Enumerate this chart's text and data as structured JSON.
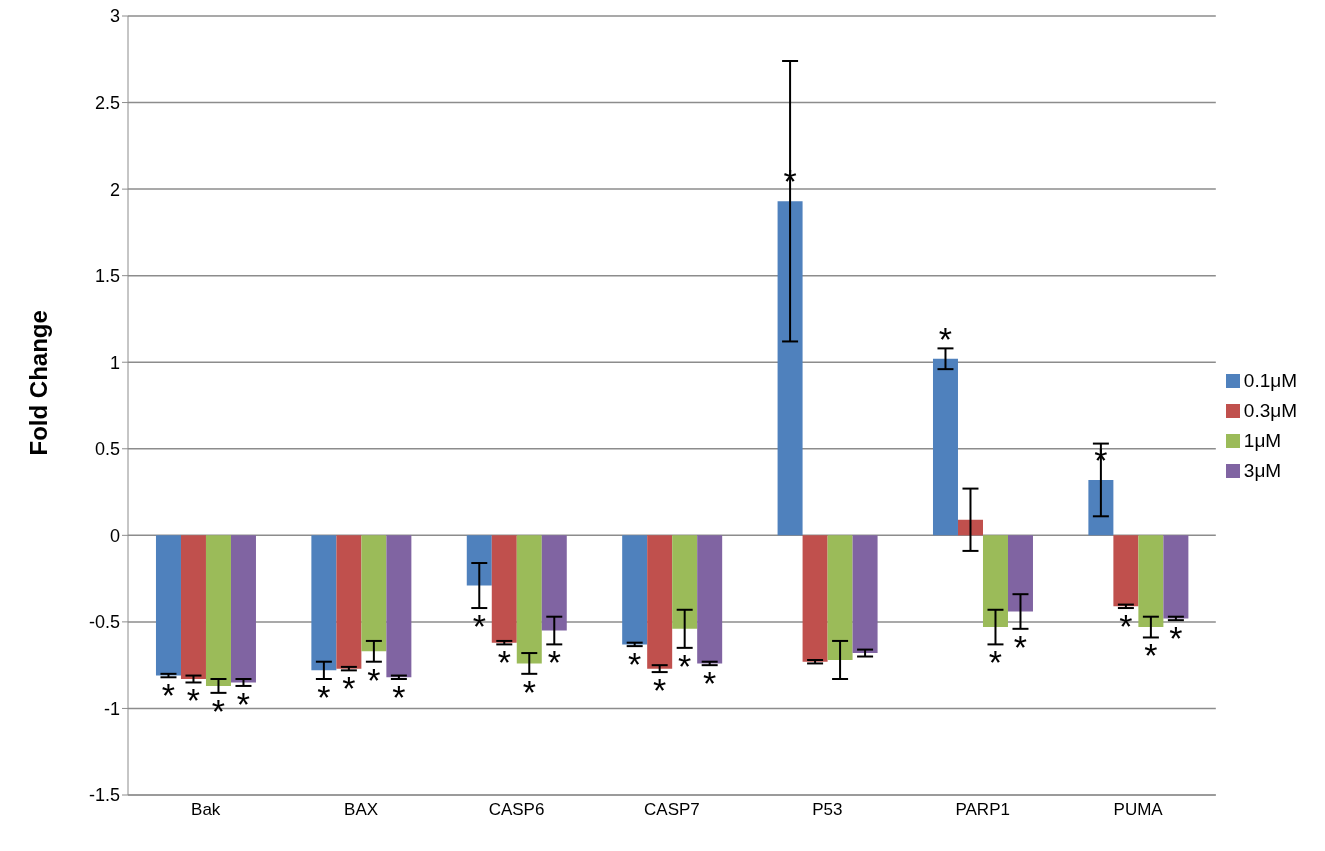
{
  "chart_data": {
    "type": "bar",
    "ylabel": "Fold Change",
    "categories": [
      "Bak",
      "BAX",
      "CASP6",
      "CASP7",
      "P53",
      "PARP1",
      "PUMA"
    ],
    "series": [
      {
        "name": "0.1μM",
        "color": "#4f81bd",
        "values": [
          -0.81,
          -0.78,
          -0.29,
          -0.63,
          1.93,
          1.02,
          0.32
        ],
        "errors": [
          0.01,
          0.05,
          0.13,
          0.01,
          0.81,
          0.06,
          0.21
        ],
        "value_labels": [
          "*",
          "*",
          "*",
          "*",
          "*",
          "*",
          "*"
        ]
      },
      {
        "name": "0.3μM",
        "color": "#c0504d",
        "values": [
          -0.83,
          -0.77,
          -0.62,
          -0.77,
          -0.73,
          0.09,
          -0.41
        ],
        "errors": [
          0.02,
          0.01,
          0.01,
          0.02,
          0.01,
          0.18,
          0.01
        ],
        "value_labels": [
          "*",
          "*",
          "*",
          "*",
          null,
          null,
          "*"
        ]
      },
      {
        "name": "1μM",
        "color": "#9bbb59",
        "values": [
          -0.87,
          -0.67,
          -0.74,
          -0.54,
          -0.72,
          -0.53,
          -0.53
        ],
        "errors": [
          0.04,
          0.06,
          0.06,
          0.11,
          0.11,
          0.1,
          0.06
        ],
        "value_labels": [
          "*",
          "*",
          "*",
          "*",
          null,
          "*",
          "*"
        ]
      },
      {
        "name": "3μM",
        "color": "#8064a2",
        "values": [
          -0.85,
          -0.82,
          -0.55,
          -0.74,
          -0.68,
          -0.44,
          -0.48
        ],
        "errors": [
          0.02,
          0.01,
          0.08,
          0.01,
          0.02,
          0.1,
          0.01
        ],
        "value_labels": [
          "*",
          "*",
          "*",
          "*",
          null,
          "*",
          "*"
        ]
      }
    ],
    "ylim": [
      -1.5,
      3
    ],
    "yticks": [
      -1.5,
      -1,
      -0.5,
      0,
      0.5,
      1,
      1.5,
      2,
      2.5,
      3
    ],
    "grid": "y",
    "legend": "right"
  }
}
